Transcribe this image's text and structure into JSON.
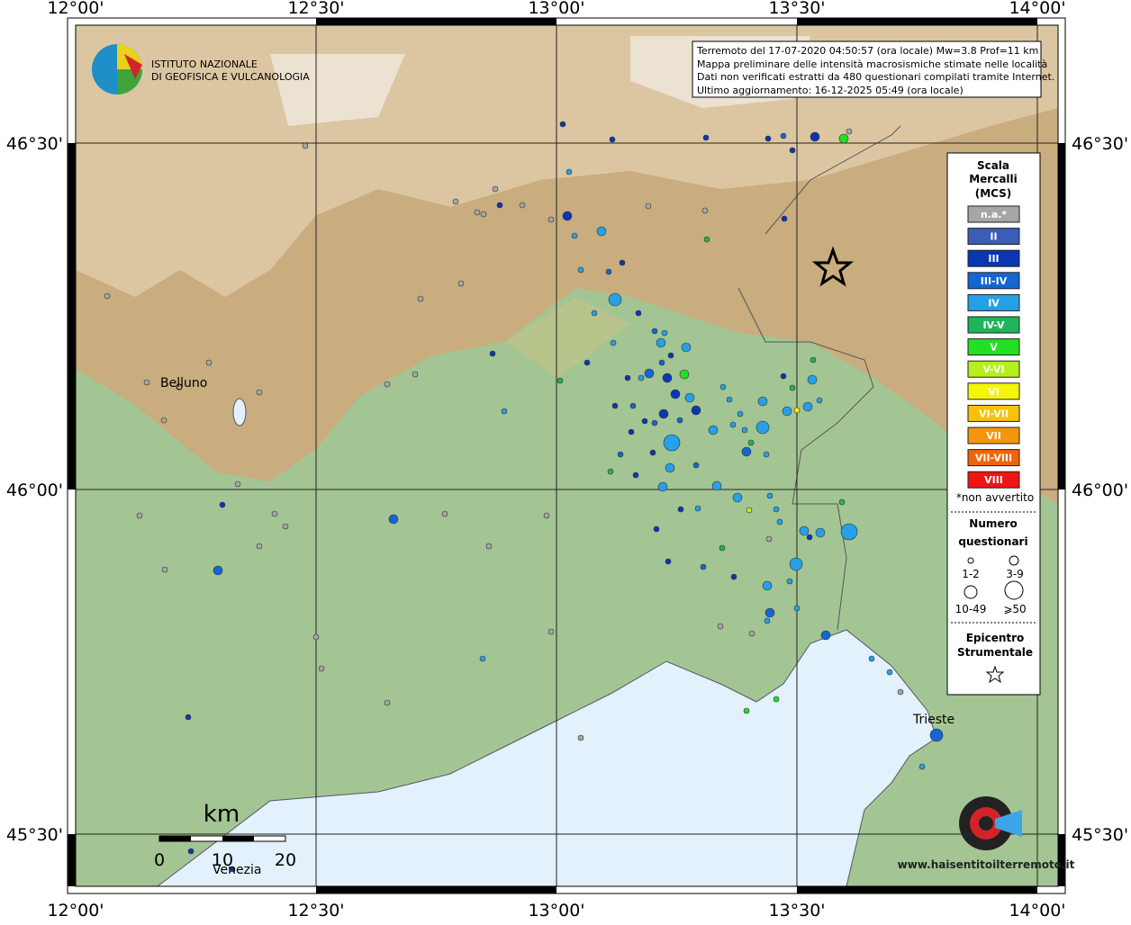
{
  "map": {
    "lon_labels": [
      "12°00'",
      "12°30'",
      "13°00'",
      "13°30'",
      "14°00'"
    ],
    "lat_labels": [
      "46°30'",
      "46°00'",
      "45°30'"
    ],
    "places": [
      "Belluno",
      "Trieste",
      "Venezia"
    ]
  },
  "logo": {
    "lines": [
      "ISTITUTO NAZIONALE",
      "DI GEOFISICA E VULCANOLOGIA"
    ]
  },
  "info": {
    "lines": [
      "Terremoto del 17-07-2020 04:50:57 (ora locale) Mw=3.8 Prof=11 km",
      "Mappa preliminare delle intensità macrosismiche stimate nelle località",
      "Dati non verificati estratti da 480 questionari compilati tramite Internet.",
      "Ultimo aggiornamento: 16-12-2025 05:49 (ora locale)"
    ]
  },
  "legend": {
    "title_lines": [
      "Scala",
      "Mercalli",
      "(MCS)"
    ],
    "classes": [
      {
        "label": "n.a.*",
        "color": "#a6a6a6"
      },
      {
        "label": "II",
        "color": "#3b5cb8"
      },
      {
        "label": "III",
        "color": "#0a36b4"
      },
      {
        "label": "III-IV",
        "color": "#1466d2"
      },
      {
        "label": "IV",
        "color": "#26a0e6"
      },
      {
        "label": "IV-V",
        "color": "#1fb45a"
      },
      {
        "label": "V",
        "color": "#22e022"
      },
      {
        "label": "V-VI",
        "color": "#b4f01e"
      },
      {
        "label": "VI",
        "color": "#f5f50a"
      },
      {
        "label": "VI-VII",
        "color": "#f5c30a"
      },
      {
        "label": "VII",
        "color": "#f5960a"
      },
      {
        "label": "VII-VIII",
        "color": "#f0640a"
      },
      {
        "label": "VIII",
        "color": "#f01414"
      }
    ],
    "note": "*non avvertito",
    "count_title_lines": [
      "Numero",
      "questionari"
    ],
    "count_sizes": [
      "1-2",
      "3-9",
      "10-49",
      "⩾50"
    ],
    "epicentre_lines": [
      "Epicentro",
      "Strumentale"
    ]
  },
  "scale_bar": {
    "unit": "km",
    "ticks": [
      0,
      10,
      20
    ]
  },
  "watermark": "www.haisentitoilterremoto.it"
}
